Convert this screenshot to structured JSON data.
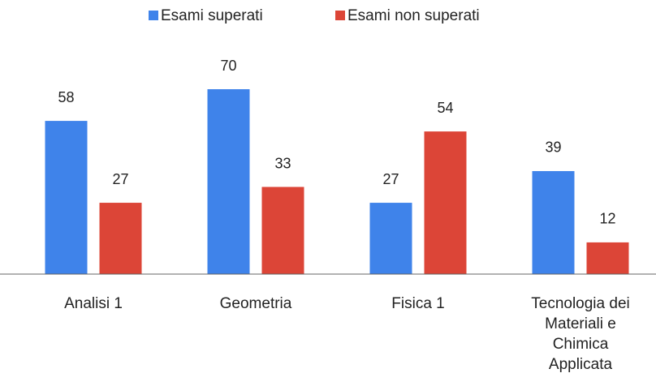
{
  "chart_data": {
    "type": "bar",
    "categories": [
      "Analisi 1",
      "Geometria",
      "Fisica 1",
      "Tecnologia dei Materiali e Chimica Applicata"
    ],
    "series": [
      {
        "name": "Esami superati",
        "color": "#3f83ea",
        "values": [
          58,
          70,
          27,
          39
        ]
      },
      {
        "name": "Esami non superati",
        "color": "#dc4537",
        "values": [
          27,
          33,
          54,
          12
        ]
      }
    ],
    "legend": "top"
  }
}
